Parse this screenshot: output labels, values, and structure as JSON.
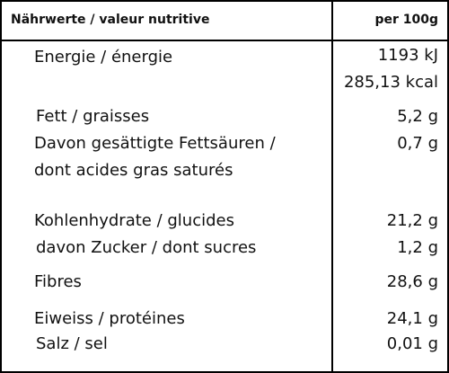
{
  "table": {
    "header": [
      "Nährwerte / valeur nutritive",
      "per 100g"
    ],
    "rows": [
      {
        "label": [
          "Energie / énergie"
        ],
        "value": [
          "1193 kJ",
          "285,13 kcal"
        ]
      },
      {
        "label": [
          "Fett / graisses"
        ],
        "value": [
          "5,2 g"
        ]
      },
      {
        "label": [
          "Davon gesättigte Fettsäuren /",
          "dont acides gras saturés"
        ],
        "value": [
          "0,7 g"
        ]
      },
      {
        "label": [
          "Kohlenhydrate / glucides"
        ],
        "value": [
          "21,2 g"
        ]
      },
      {
        "label": [
          "davon Zucker / dont sucres"
        ],
        "value": [
          "1,2 g"
        ]
      },
      {
        "label": [
          "Fibres"
        ],
        "value": [
          "28,6 g"
        ]
      },
      {
        "label": [
          "Eiweiss / protéines"
        ],
        "value": [
          "24,1 g"
        ]
      },
      {
        "label": [
          "Salz / sel"
        ],
        "value": [
          "0,01 g"
        ]
      }
    ]
  }
}
